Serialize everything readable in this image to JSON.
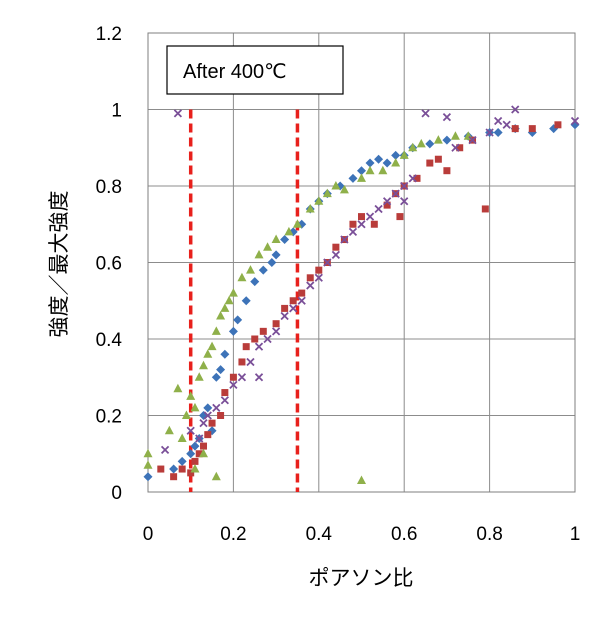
{
  "chart_data": {
    "type": "scatter",
    "title": "",
    "xlabel": "ポアソン比",
    "ylabel": "強度／最大強度",
    "annotation": "After 400℃",
    "xlim": [
      0,
      1
    ],
    "ylim": [
      0,
      1.2
    ],
    "xticks": [
      "0",
      "0.2",
      "0.4",
      "0.6",
      "0.8",
      "1"
    ],
    "yticks": [
      "0",
      "0.2",
      "0.4",
      "0.6",
      "0.8",
      "1",
      "1.2"
    ],
    "grid": true,
    "reference_lines": [
      {
        "axis": "x",
        "value": 0.1,
        "style": "dashed",
        "color": "#e8201c"
      },
      {
        "axis": "x",
        "value": 0.35,
        "style": "dashed",
        "color": "#e8201c"
      }
    ],
    "series": [
      {
        "marker": "diamond",
        "color": "#3d73b8",
        "points": [
          [
            0.0,
            0.04
          ],
          [
            0.06,
            0.06
          ],
          [
            0.08,
            0.08
          ],
          [
            0.1,
            0.1
          ],
          [
            0.11,
            0.12
          ],
          [
            0.12,
            0.14
          ],
          [
            0.13,
            0.2
          ],
          [
            0.14,
            0.22
          ],
          [
            0.15,
            0.16
          ],
          [
            0.16,
            0.3
          ],
          [
            0.17,
            0.32
          ],
          [
            0.18,
            0.36
          ],
          [
            0.2,
            0.42
          ],
          [
            0.21,
            0.45
          ],
          [
            0.23,
            0.5
          ],
          [
            0.25,
            0.55
          ],
          [
            0.27,
            0.58
          ],
          [
            0.29,
            0.6
          ],
          [
            0.3,
            0.62
          ],
          [
            0.32,
            0.66
          ],
          [
            0.34,
            0.68
          ],
          [
            0.36,
            0.7
          ],
          [
            0.38,
            0.74
          ],
          [
            0.4,
            0.76
          ],
          [
            0.42,
            0.78
          ],
          [
            0.45,
            0.8
          ],
          [
            0.48,
            0.82
          ],
          [
            0.5,
            0.84
          ],
          [
            0.52,
            0.86
          ],
          [
            0.54,
            0.87
          ],
          [
            0.56,
            0.86
          ],
          [
            0.58,
            0.88
          ],
          [
            0.6,
            0.88
          ],
          [
            0.62,
            0.9
          ],
          [
            0.66,
            0.91
          ],
          [
            0.7,
            0.92
          ],
          [
            0.75,
            0.93
          ],
          [
            0.8,
            0.94
          ],
          [
            0.82,
            0.94
          ],
          [
            0.86,
            0.95
          ],
          [
            0.9,
            0.94
          ],
          [
            0.95,
            0.95
          ],
          [
            1.0,
            0.96
          ]
        ]
      },
      {
        "marker": "square",
        "color": "#b93c3a",
        "points": [
          [
            0.03,
            0.06
          ],
          [
            0.06,
            0.04
          ],
          [
            0.08,
            0.06
          ],
          [
            0.1,
            0.05
          ],
          [
            0.11,
            0.08
          ],
          [
            0.12,
            0.1
          ],
          [
            0.13,
            0.12
          ],
          [
            0.14,
            0.15
          ],
          [
            0.15,
            0.18
          ],
          [
            0.17,
            0.2
          ],
          [
            0.18,
            0.26
          ],
          [
            0.2,
            0.3
          ],
          [
            0.22,
            0.34
          ],
          [
            0.23,
            0.38
          ],
          [
            0.25,
            0.4
          ],
          [
            0.27,
            0.42
          ],
          [
            0.3,
            0.44
          ],
          [
            0.32,
            0.48
          ],
          [
            0.34,
            0.5
          ],
          [
            0.36,
            0.52
          ],
          [
            0.38,
            0.56
          ],
          [
            0.4,
            0.58
          ],
          [
            0.42,
            0.6
          ],
          [
            0.44,
            0.64
          ],
          [
            0.46,
            0.66
          ],
          [
            0.48,
            0.7
          ],
          [
            0.5,
            0.72
          ],
          [
            0.53,
            0.7
          ],
          [
            0.56,
            0.75
          ],
          [
            0.58,
            0.78
          ],
          [
            0.59,
            0.72
          ],
          [
            0.6,
            0.8
          ],
          [
            0.63,
            0.82
          ],
          [
            0.66,
            0.86
          ],
          [
            0.68,
            0.87
          ],
          [
            0.7,
            0.84
          ],
          [
            0.73,
            0.9
          ],
          [
            0.76,
            0.92
          ],
          [
            0.79,
            0.74
          ],
          [
            0.86,
            0.95
          ],
          [
            0.9,
            0.95
          ],
          [
            0.96,
            0.96
          ]
        ]
      },
      {
        "marker": "triangle",
        "color": "#8fb04a",
        "points": [
          [
            0.0,
            0.1
          ],
          [
            0.0,
            0.07
          ],
          [
            0.05,
            0.16
          ],
          [
            0.07,
            0.27
          ],
          [
            0.08,
            0.14
          ],
          [
            0.09,
            0.2
          ],
          [
            0.1,
            0.25
          ],
          [
            0.11,
            0.22
          ],
          [
            0.12,
            0.3
          ],
          [
            0.13,
            0.33
          ],
          [
            0.14,
            0.36
          ],
          [
            0.15,
            0.38
          ],
          [
            0.16,
            0.42
          ],
          [
            0.17,
            0.46
          ],
          [
            0.18,
            0.48
          ],
          [
            0.19,
            0.5
          ],
          [
            0.2,
            0.52
          ],
          [
            0.22,
            0.56
          ],
          [
            0.24,
            0.58
          ],
          [
            0.26,
            0.62
          ],
          [
            0.28,
            0.64
          ],
          [
            0.3,
            0.66
          ],
          [
            0.33,
            0.68
          ],
          [
            0.35,
            0.7
          ],
          [
            0.38,
            0.74
          ],
          [
            0.4,
            0.76
          ],
          [
            0.42,
            0.78
          ],
          [
            0.44,
            0.8
          ],
          [
            0.46,
            0.79
          ],
          [
            0.5,
            0.82
          ],
          [
            0.52,
            0.84
          ],
          [
            0.55,
            0.84
          ],
          [
            0.58,
            0.86
          ],
          [
            0.6,
            0.88
          ],
          [
            0.62,
            0.9
          ],
          [
            0.64,
            0.91
          ],
          [
            0.68,
            0.92
          ],
          [
            0.72,
            0.93
          ],
          [
            0.75,
            0.93
          ],
          [
            0.5,
            0.03
          ],
          [
            0.11,
            0.06
          ],
          [
            0.13,
            0.1
          ],
          [
            0.16,
            0.04
          ]
        ]
      },
      {
        "marker": "x",
        "color": "#7a4f98",
        "points": [
          [
            0.04,
            0.11
          ],
          [
            0.07,
            0.99
          ],
          [
            0.1,
            0.16
          ],
          [
            0.12,
            0.14
          ],
          [
            0.13,
            0.18
          ],
          [
            0.14,
            0.2
          ],
          [
            0.16,
            0.22
          ],
          [
            0.18,
            0.24
          ],
          [
            0.2,
            0.28
          ],
          [
            0.22,
            0.3
          ],
          [
            0.24,
            0.34
          ],
          [
            0.26,
            0.38
          ],
          [
            0.28,
            0.4
          ],
          [
            0.3,
            0.42
          ],
          [
            0.32,
            0.46
          ],
          [
            0.34,
            0.48
          ],
          [
            0.36,
            0.5
          ],
          [
            0.38,
            0.54
          ],
          [
            0.4,
            0.56
          ],
          [
            0.42,
            0.6
          ],
          [
            0.44,
            0.62
          ],
          [
            0.46,
            0.66
          ],
          [
            0.48,
            0.68
          ],
          [
            0.5,
            0.7
          ],
          [
            0.52,
            0.72
          ],
          [
            0.54,
            0.74
          ],
          [
            0.56,
            0.76
          ],
          [
            0.58,
            0.78
          ],
          [
            0.6,
            0.8
          ],
          [
            0.62,
            0.82
          ],
          [
            0.65,
            0.99
          ],
          [
            0.7,
            0.98
          ],
          [
            0.72,
            0.9
          ],
          [
            0.76,
            0.92
          ],
          [
            0.8,
            0.94
          ],
          [
            0.82,
            0.97
          ],
          [
            0.84,
            0.96
          ],
          [
            0.86,
            1.0
          ],
          [
            1.0,
            0.97
          ],
          [
            0.6,
            0.76
          ],
          [
            0.26,
            0.3
          ]
        ]
      }
    ]
  }
}
